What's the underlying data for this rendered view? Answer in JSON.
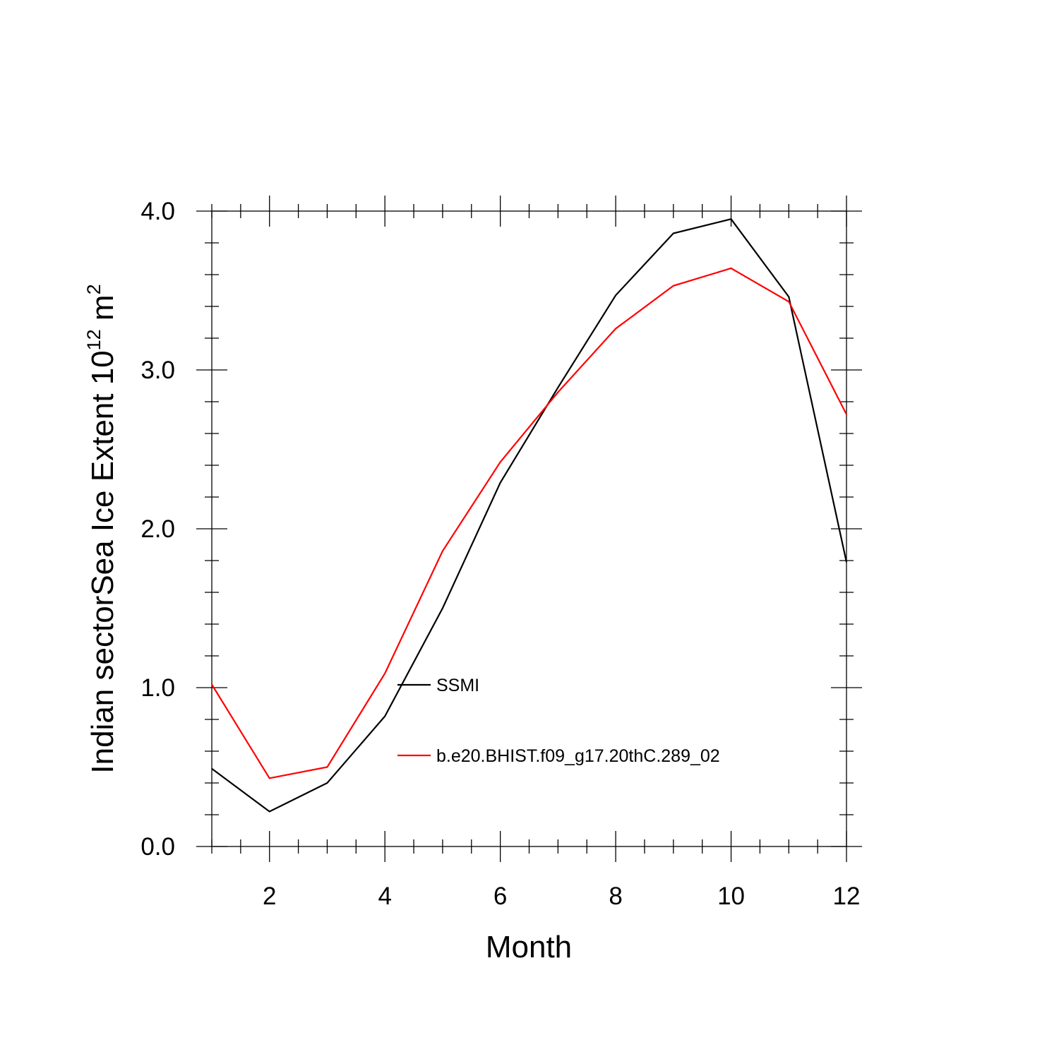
{
  "chart_data": {
    "type": "line",
    "title": "",
    "xlabel": "Month",
    "ylabel_main": "Indian sectorSea Ice Extent 10",
    "ylabel_sup1": "12",
    "ylabel_unit": " m",
    "ylabel_sup2": "2",
    "x": [
      1,
      2,
      3,
      4,
      5,
      6,
      7,
      8,
      9,
      10,
      11,
      12
    ],
    "xlim": [
      1,
      12
    ],
    "ylim": [
      0,
      4
    ],
    "xticks": [
      2,
      4,
      6,
      8,
      10,
      12
    ],
    "xtick_labels": [
      "2",
      "4",
      "6",
      "8",
      "10",
      "12"
    ],
    "yticks": [
      0,
      1,
      2,
      3,
      4
    ],
    "ytick_labels": [
      "0.0",
      "1.0",
      "2.0",
      "3.0",
      "4.0"
    ],
    "grid": false,
    "legend_position": "inside lower center",
    "series": [
      {
        "name": "SSMI",
        "color": "#000000",
        "values": [
          0.49,
          0.22,
          0.4,
          0.82,
          1.5,
          2.29,
          2.89,
          3.47,
          3.86,
          3.95,
          3.46,
          1.79
        ]
      },
      {
        "name": "b.e20.BHIST.f09_g17.20thC.289_02",
        "color": "#ff0000",
        "values": [
          1.02,
          0.43,
          0.5,
          1.09,
          1.86,
          2.42,
          2.86,
          3.26,
          3.53,
          3.64,
          3.43,
          2.72
        ]
      }
    ]
  }
}
